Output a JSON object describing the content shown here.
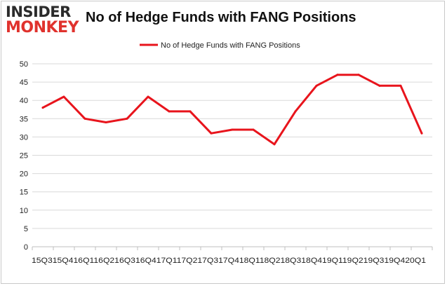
{
  "logo": {
    "line1": "INSIDER",
    "line2": "MONKEY"
  },
  "colors": {
    "series": "#e8141c",
    "logo_red": "#e0322d",
    "grid": "#d9d9d9"
  },
  "chart_data": {
    "type": "line",
    "title": "No of Hedge Funds with FANG Positions",
    "legend": "top-center",
    "grid": true,
    "xlabel": "",
    "ylabel": "",
    "ylim": [
      0,
      50
    ],
    "yticks": [
      0,
      5,
      10,
      15,
      20,
      25,
      30,
      35,
      40,
      45,
      50
    ],
    "x_axis_text": "15Q315Q416Q116Q216Q316Q417Q117Q217Q317Q418Q118Q218Q318Q419Q119Q219Q319Q420Q1",
    "categories": [
      "15Q3",
      "15Q4",
      "16Q1",
      "16Q2",
      "16Q3",
      "16Q4",
      "17Q1",
      "17Q2",
      "17Q3",
      "17Q4",
      "18Q1",
      "18Q2",
      "18Q3",
      "18Q4",
      "19Q1",
      "19Q2",
      "19Q3",
      "19Q4",
      "20Q1"
    ],
    "series": [
      {
        "name": "No of Hedge Funds with FANG Positions",
        "values": [
          38,
          41,
          35,
          34,
          35,
          41,
          37,
          37,
          31,
          32,
          32,
          28,
          37,
          44,
          47,
          47,
          44,
          44,
          31
        ]
      }
    ]
  }
}
